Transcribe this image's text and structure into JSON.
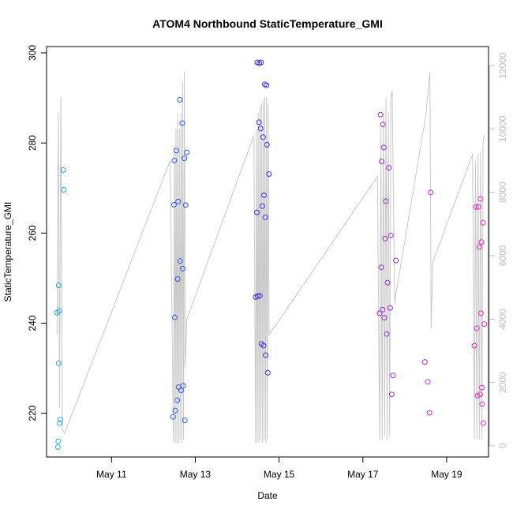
{
  "chart_data": {
    "type": "scatter",
    "title": "ATOM4 Northbound StaticTemperature_GMI",
    "xlabel": "Date",
    "ylabel": "StaticTemperature_GMI",
    "x_ticks": [
      "May 11",
      "May 13",
      "May 15",
      "May 17",
      "May 19"
    ],
    "x_tick_days": [
      11,
      13,
      15,
      17,
      19
    ],
    "xlim": [
      9.45,
      20.0
    ],
    "y_ticks": [
      220,
      240,
      260,
      280,
      300
    ],
    "ylim": [
      210.3,
      301.4
    ],
    "y2_ticks": [
      0,
      2000,
      4000,
      6000,
      8000,
      10000,
      12000
    ],
    "y2lim": [
      -350,
      12600
    ],
    "grid": false,
    "colors": {
      "line": "#c8c8c8",
      "right_axis": "#bdbdbd",
      "gradient_start": "#29a9e6",
      "gradient_mid": "#2f2fe6",
      "gradient_end": "#e62cc0"
    },
    "series": [
      {
        "kind": "points",
        "points": [
          [
            9.7,
            242.3
          ],
          [
            9.72,
            212.5
          ],
          [
            9.73,
            213.8
          ],
          [
            9.74,
            248.4
          ],
          [
            9.74,
            231.1
          ],
          [
            9.75,
            242.7
          ],
          [
            9.76,
            217.8
          ],
          [
            9.78,
            218.6
          ],
          [
            9.85,
            274.0
          ],
          [
            9.86,
            269.6
          ],
          [
            12.47,
            219.2
          ],
          [
            12.49,
            266.3
          ],
          [
            12.5,
            276.1
          ],
          [
            12.51,
            241.3
          ],
          [
            12.52,
            220.6
          ],
          [
            12.55,
            278.3
          ],
          [
            12.57,
            222.9
          ],
          [
            12.58,
            249.8
          ],
          [
            12.59,
            267.0
          ],
          [
            12.6,
            225.8
          ],
          [
            12.63,
            289.6
          ],
          [
            12.64,
            253.8
          ],
          [
            12.66,
            225.1
          ],
          [
            12.69,
            284.4
          ],
          [
            12.7,
            252.1
          ],
          [
            12.71,
            226.1
          ],
          [
            12.74,
            276.6
          ],
          [
            12.75,
            218.4
          ],
          [
            12.77,
            266.2
          ],
          [
            12.8,
            277.9
          ],
          [
            14.44,
            245.8
          ],
          [
            14.47,
            264.6
          ],
          [
            14.48,
            297.9
          ],
          [
            14.49,
            246.0
          ],
          [
            14.52,
            284.6
          ],
          [
            14.53,
            297.7
          ],
          [
            14.54,
            246.1
          ],
          [
            14.56,
            283.2
          ],
          [
            14.57,
            297.9
          ],
          [
            14.58,
            235.4
          ],
          [
            14.6,
            266.0
          ],
          [
            14.62,
            281.3
          ],
          [
            14.63,
            235.0
          ],
          [
            14.64,
            268.4
          ],
          [
            14.66,
            293.0
          ],
          [
            14.67,
            263.5
          ],
          [
            14.68,
            232.9
          ],
          [
            14.7,
            292.8
          ],
          [
            14.71,
            279.6
          ],
          [
            14.73,
            229.0
          ],
          [
            14.76,
            273.1
          ],
          [
            17.4,
            242.2
          ],
          [
            17.42,
            286.3
          ],
          [
            17.44,
            252.4
          ],
          [
            17.45,
            275.9
          ],
          [
            17.47,
            243.0
          ],
          [
            17.48,
            284.1
          ],
          [
            17.5,
            279.0
          ],
          [
            17.51,
            241.2
          ],
          [
            17.53,
            258.8
          ],
          [
            17.55,
            267.1
          ],
          [
            17.57,
            237.6
          ],
          [
            17.59,
            249.0
          ],
          [
            17.62,
            274.5
          ],
          [
            17.65,
            243.4
          ],
          [
            17.67,
            259.5
          ],
          [
            17.69,
            224.2
          ],
          [
            17.72,
            228.4
          ],
          [
            17.79,
            253.9
          ],
          [
            18.48,
            231.4
          ],
          [
            18.55,
            227.0
          ],
          [
            18.59,
            220.1
          ],
          [
            18.62,
            269.0
          ],
          [
            19.66,
            235.0
          ],
          [
            19.7,
            265.8
          ],
          [
            19.72,
            238.9
          ],
          [
            19.74,
            223.9
          ],
          [
            19.76,
            265.8
          ],
          [
            19.78,
            256.9
          ],
          [
            19.8,
            224.2
          ],
          [
            19.81,
            267.6
          ],
          [
            19.82,
            242.2
          ],
          [
            19.83,
            258.0
          ],
          [
            19.84,
            225.7
          ],
          [
            19.85,
            222.0
          ],
          [
            19.87,
            262.3
          ],
          [
            19.88,
            217.8
          ],
          [
            19.9,
            239.8
          ]
        ]
      },
      {
        "kind": "line",
        "axis": "right",
        "points": [
          [
            9.7,
            3500
          ],
          [
            9.73,
            10500
          ],
          [
            9.76,
            1200
          ],
          [
            9.79,
            11000
          ],
          [
            9.83,
            500
          ],
          [
            9.88,
            400
          ],
          [
            12.4,
            9000
          ],
          [
            12.48,
            100
          ],
          [
            12.5,
            9500
          ],
          [
            12.52,
            100
          ],
          [
            12.54,
            10000
          ],
          [
            12.56,
            100
          ],
          [
            12.58,
            10500
          ],
          [
            12.6,
            100
          ],
          [
            12.62,
            10000
          ],
          [
            12.64,
            200
          ],
          [
            12.66,
            10500
          ],
          [
            12.68,
            100
          ],
          [
            12.7,
            11500
          ],
          [
            12.72,
            200
          ],
          [
            12.74,
            11800
          ],
          [
            12.76,
            2500
          ],
          [
            12.8,
            4000
          ],
          [
            14.4,
            9800
          ],
          [
            14.44,
            100
          ],
          [
            14.46,
            10000
          ],
          [
            14.48,
            100
          ],
          [
            14.5,
            10500
          ],
          [
            14.52,
            100
          ],
          [
            14.54,
            10700
          ],
          [
            14.56,
            200
          ],
          [
            14.58,
            10800
          ],
          [
            14.6,
            100
          ],
          [
            14.62,
            10900
          ],
          [
            14.64,
            200
          ],
          [
            14.66,
            11000
          ],
          [
            14.68,
            100
          ],
          [
            14.7,
            11000
          ],
          [
            14.72,
            200
          ],
          [
            14.74,
            10800
          ],
          [
            14.76,
            3500
          ],
          [
            17.35,
            8500
          ],
          [
            17.4,
            200
          ],
          [
            17.43,
            10000
          ],
          [
            17.46,
            200
          ],
          [
            17.49,
            10500
          ],
          [
            17.52,
            300
          ],
          [
            17.55,
            11000
          ],
          [
            17.58,
            200
          ],
          [
            17.61,
            10500
          ],
          [
            17.64,
            300
          ],
          [
            17.67,
            11000
          ],
          [
            17.7,
            11200
          ],
          [
            17.76,
            4500
          ],
          [
            17.79,
            4800
          ],
          [
            18.5,
            10400
          ],
          [
            18.6,
            11800
          ],
          [
            18.63,
            3700
          ],
          [
            18.67,
            5800
          ],
          [
            19.62,
            9200
          ],
          [
            19.66,
            200
          ],
          [
            19.69,
            9000
          ],
          [
            19.72,
            200
          ],
          [
            19.75,
            9200
          ],
          [
            19.78,
            200
          ],
          [
            19.81,
            9300
          ],
          [
            19.84,
            200
          ],
          [
            19.87,
            9600
          ],
          [
            19.9,
            9800
          ]
        ]
      }
    ]
  }
}
